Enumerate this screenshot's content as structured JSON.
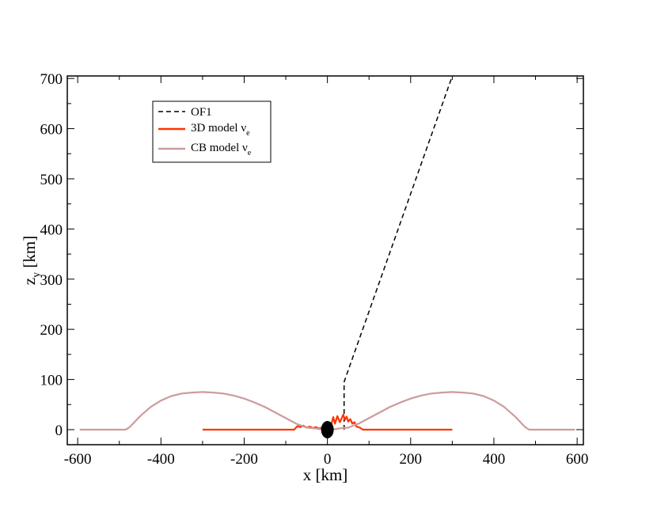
{
  "chart_data": {
    "type": "line",
    "xlabel": "x [km]",
    "ylabel": "z",
    "ylabel_sub": "y",
    "ylabel_unit": " [km]",
    "xlim": [
      -625,
      615
    ],
    "ylim": [
      -30,
      705
    ],
    "xticks": [
      -600,
      -400,
      -200,
      0,
      200,
      400,
      600
    ],
    "yticks": [
      0,
      100,
      200,
      300,
      400,
      500,
      600,
      700
    ],
    "xtick_labels": [
      "-600",
      "-400",
      "-200",
      "0",
      "200",
      "400",
      "600"
    ],
    "ytick_labels": [
      "0",
      "100",
      "200",
      "300",
      "400",
      "500",
      "600",
      "700"
    ],
    "grid": false,
    "legend_position": "top-left",
    "series": [
      {
        "name": "OF1",
        "label_main": "OF1",
        "label_sub": "",
        "color": "#000000",
        "dash": "6,4",
        "x": [
          40,
          40,
          300
        ],
        "y": [
          0,
          95,
          705
        ]
      },
      {
        "name": "3D model νe",
        "label_main": "3D model ν",
        "label_sub": "e",
        "color": "#ff3300",
        "dash": "",
        "x": [
          -300,
          -80,
          -72,
          -65,
          -58,
          -50,
          -42,
          -35,
          -28,
          -20,
          -14,
          -8,
          0,
          8,
          14,
          18,
          24,
          30,
          34,
          38,
          42,
          46,
          50,
          55,
          60,
          65,
          70,
          78,
          85,
          300
        ],
        "y": [
          0,
          0,
          7,
          5,
          8,
          4,
          6,
          3,
          5,
          2,
          4,
          2,
          3,
          6,
          25,
          12,
          27,
          15,
          22,
          30,
          20,
          26,
          16,
          21,
          12,
          15,
          6,
          4,
          0,
          0
        ]
      },
      {
        "name": "CB model νe",
        "label_main": "CB model  ν",
        "label_sub": "e",
        "color": "#cc9c9c",
        "dash": "",
        "x": [
          -595,
          -485,
          -475,
          -450,
          -425,
          -400,
          -375,
          -350,
          -325,
          -300,
          -275,
          -250,
          -225,
          -200,
          -175,
          -150,
          -125,
          -100,
          -75,
          -50,
          -25,
          -20,
          -15,
          -10,
          -5,
          0,
          5,
          10,
          15,
          20,
          25,
          50,
          75,
          100,
          125,
          150,
          175,
          200,
          225,
          250,
          275,
          300,
          325,
          350,
          375,
          400,
          425,
          450,
          475,
          485,
          595
        ],
        "y": [
          0,
          0,
          5,
          27,
          45,
          58,
          67,
          72,
          74,
          75,
          74,
          72,
          68,
          62,
          54,
          45,
          34,
          23,
          12,
          4,
          2,
          1,
          1,
          0,
          0,
          0,
          0,
          0,
          1,
          1,
          2,
          4,
          12,
          23,
          34,
          45,
          54,
          62,
          68,
          72,
          74,
          75,
          74,
          72,
          67,
          58,
          45,
          27,
          5,
          0,
          0
        ]
      }
    ],
    "marker": {
      "shape": "filled-ellipse",
      "color": "#000000",
      "x": 0,
      "y": 0
    }
  }
}
